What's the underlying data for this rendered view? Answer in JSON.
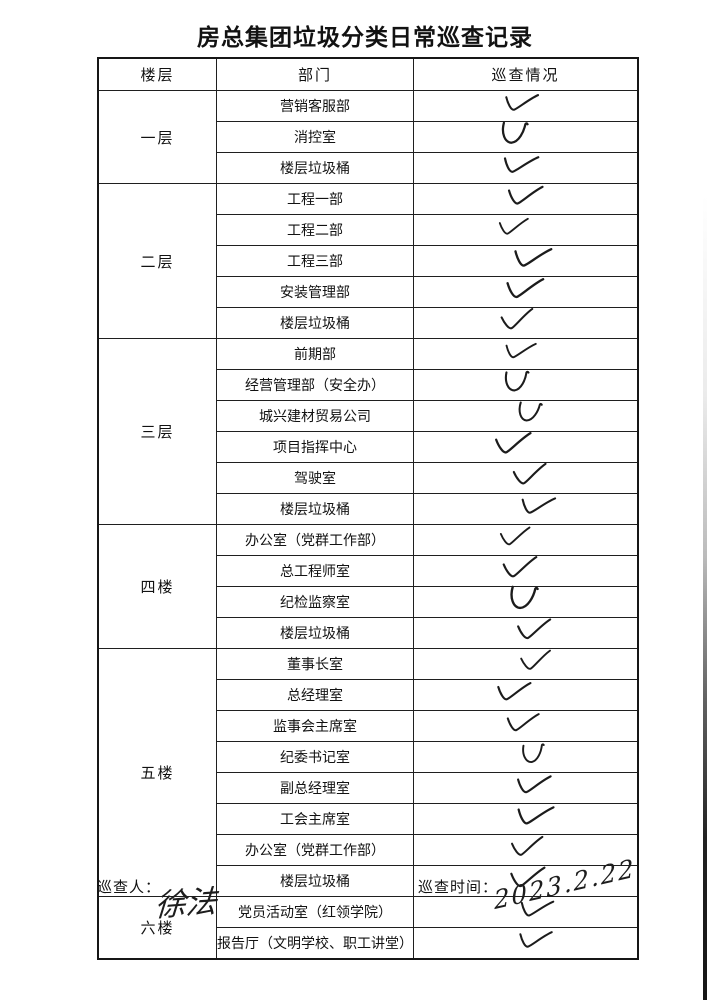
{
  "page": {
    "title": "房总集团垃圾分类日常巡查记录"
  },
  "table": {
    "headers": [
      "楼层",
      "部门",
      "巡查情况"
    ],
    "check_symbol": "checkmark",
    "floors": [
      {
        "floor": "一层",
        "departments": [
          {
            "name": "营销客服部",
            "checked": true
          },
          {
            "name": "消控室",
            "checked": true
          },
          {
            "name": "楼层垃圾桶",
            "checked": true
          }
        ]
      },
      {
        "floor": "二层",
        "departments": [
          {
            "name": "工程一部",
            "checked": true
          },
          {
            "name": "工程二部",
            "checked": true
          },
          {
            "name": "工程三部",
            "checked": true
          },
          {
            "name": "安装管理部",
            "checked": true
          },
          {
            "name": "楼层垃圾桶",
            "checked": true
          }
        ]
      },
      {
        "floor": "三层",
        "departments": [
          {
            "name": "前期部",
            "checked": true
          },
          {
            "name": "经营管理部（安全办）",
            "checked": true
          },
          {
            "name": "城兴建材贸易公司",
            "checked": true
          },
          {
            "name": "项目指挥中心",
            "checked": true
          },
          {
            "name": "驾驶室",
            "checked": true
          },
          {
            "name": "楼层垃圾桶",
            "checked": true
          }
        ]
      },
      {
        "floor": "四楼",
        "departments": [
          {
            "name": "办公室（党群工作部）",
            "checked": true
          },
          {
            "name": "总工程师室",
            "checked": true
          },
          {
            "name": "纪检监察室",
            "checked": true
          },
          {
            "name": "楼层垃圾桶",
            "checked": true
          }
        ]
      },
      {
        "floor": "五楼",
        "departments": [
          {
            "name": "董事长室",
            "checked": true
          },
          {
            "name": "总经理室",
            "checked": true
          },
          {
            "name": "监事会主席室",
            "checked": true
          },
          {
            "name": "纪委书记室",
            "checked": true
          },
          {
            "name": "副总经理室",
            "checked": true
          },
          {
            "name": "工会主席室",
            "checked": true
          },
          {
            "name": "办公室（党群工作部）",
            "checked": true
          },
          {
            "name": "楼层垃圾桶",
            "checked": true
          }
        ]
      },
      {
        "floor": "六楼",
        "departments": [
          {
            "name": "党员活动室（红领学院）",
            "checked": true
          },
          {
            "name": "报告厅（文明学校、职工讲堂）",
            "checked": true
          }
        ]
      }
    ]
  },
  "footer": {
    "inspector_label": "巡查人：",
    "inspector_signature": "徐法",
    "time_label": "巡查时间：",
    "time_value": "2023.2.22"
  },
  "colors": {
    "ink": "#1c1c1c",
    "paper": "#ffffff",
    "table_line": "#1f1f1f"
  }
}
